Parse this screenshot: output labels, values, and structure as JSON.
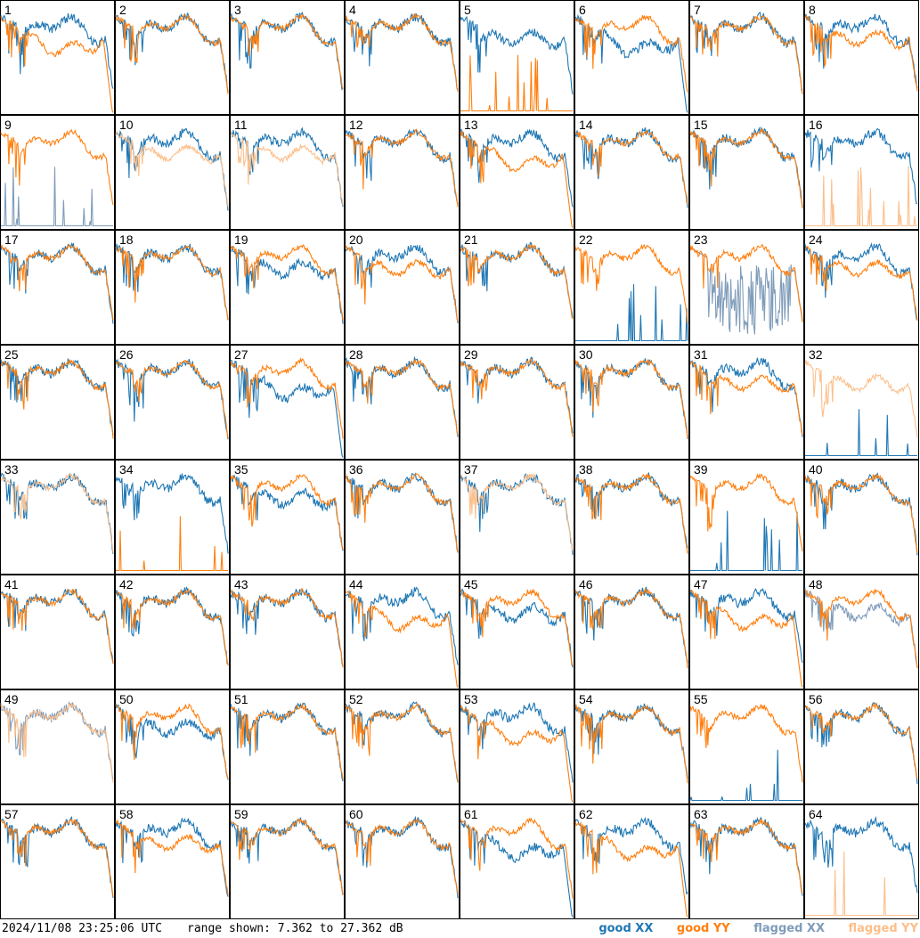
{
  "chart_data": {
    "type": "line",
    "layout": "8x8 small multiples",
    "timestamp": "2024/11/08 23:25:06 UTC",
    "range_text": "range shown: 7.362 to 27.362 dB",
    "ylim": [
      7.362,
      27.362
    ],
    "legend": [
      {
        "label": "good XX",
        "color": "#1f77b4"
      },
      {
        "label": "good YY",
        "color": "#ff7f0e"
      },
      {
        "label": "flagged XX",
        "color": "#7f9cba"
      },
      {
        "label": "flagged YY",
        "color": "#fcbf8b"
      }
    ],
    "colors": {
      "good_xx": "#1f77b4",
      "good_yy": "#ff7f0e",
      "flagged_xx": "#7f9cba",
      "flagged_yy": "#fcbf8b",
      "border": "#000000"
    },
    "panels": [
      {
        "id": "1",
        "xx": "good",
        "yy": "good",
        "xx_shape": "normal",
        "yy_shape": "drop"
      },
      {
        "id": "2",
        "xx": "good",
        "yy": "good",
        "xx_shape": "normal",
        "yy_shape": "normal"
      },
      {
        "id": "3",
        "xx": "good",
        "yy": "good",
        "xx_shape": "normal",
        "yy_shape": "normal"
      },
      {
        "id": "4",
        "xx": "good",
        "yy": "good",
        "xx_shape": "normal",
        "yy_shape": "normal"
      },
      {
        "id": "5",
        "xx": "good",
        "yy": "good",
        "xx_shape": "lowmid",
        "yy_shape": "spikes"
      },
      {
        "id": "6",
        "xx": "good",
        "yy": "good",
        "xx_shape": "drop",
        "yy_shape": "normal"
      },
      {
        "id": "7",
        "xx": "good",
        "yy": "good",
        "xx_shape": "normal",
        "yy_shape": "normal"
      },
      {
        "id": "8",
        "xx": "good",
        "yy": "good",
        "xx_shape": "normal",
        "yy_shape": "lowmid"
      },
      {
        "id": "9",
        "xx": "flagged",
        "yy": "good",
        "xx_shape": "spikes",
        "yy_shape": "normal"
      },
      {
        "id": "10",
        "xx": "good",
        "yy": "flagged",
        "xx_shape": "normal",
        "yy_shape": "lowmid"
      },
      {
        "id": "11",
        "xx": "good",
        "yy": "flagged",
        "xx_shape": "normal",
        "yy_shape": "lowmid"
      },
      {
        "id": "12",
        "xx": "good",
        "yy": "good",
        "xx_shape": "normal",
        "yy_shape": "normal"
      },
      {
        "id": "13",
        "xx": "good",
        "yy": "good",
        "xx_shape": "normal",
        "yy_shape": "drop"
      },
      {
        "id": "14",
        "xx": "good",
        "yy": "good",
        "xx_shape": "normal",
        "yy_shape": "normal"
      },
      {
        "id": "15",
        "xx": "good",
        "yy": "good",
        "xx_shape": "normal",
        "yy_shape": "normal"
      },
      {
        "id": "16",
        "xx": "good",
        "yy": "flagged",
        "xx_shape": "normal",
        "yy_shape": "spikes"
      },
      {
        "id": "17",
        "xx": "good",
        "yy": "good",
        "xx_shape": "normal",
        "yy_shape": "normal"
      },
      {
        "id": "18",
        "xx": "good",
        "yy": "good",
        "xx_shape": "normal",
        "yy_shape": "normal"
      },
      {
        "id": "19",
        "xx": "good",
        "yy": "good",
        "xx_shape": "lowmid",
        "yy_shape": "normal"
      },
      {
        "id": "20",
        "xx": "good",
        "yy": "good",
        "xx_shape": "normal",
        "yy_shape": "lowmid"
      },
      {
        "id": "21",
        "xx": "good",
        "yy": "good",
        "xx_shape": "normal",
        "yy_shape": "normal"
      },
      {
        "id": "22",
        "xx": "good",
        "yy": "good",
        "xx_shape": "spikes",
        "yy_shape": "normal"
      },
      {
        "id": "23",
        "xx": "flagged",
        "yy": "good",
        "xx_shape": "noisy",
        "yy_shape": "normal"
      },
      {
        "id": "24",
        "xx": "good",
        "yy": "good",
        "xx_shape": "normal",
        "yy_shape": "lowmid"
      },
      {
        "id": "25",
        "xx": "good",
        "yy": "good",
        "xx_shape": "normal",
        "yy_shape": "normal"
      },
      {
        "id": "26",
        "xx": "good",
        "yy": "good",
        "xx_shape": "normal",
        "yy_shape": "normal"
      },
      {
        "id": "27",
        "xx": "good",
        "yy": "good",
        "xx_shape": "drop",
        "yy_shape": "normal"
      },
      {
        "id": "28",
        "xx": "good",
        "yy": "good",
        "xx_shape": "normal",
        "yy_shape": "normal"
      },
      {
        "id": "29",
        "xx": "good",
        "yy": "good",
        "xx_shape": "normal",
        "yy_shape": "normal"
      },
      {
        "id": "30",
        "xx": "good",
        "yy": "good",
        "xx_shape": "normal",
        "yy_shape": "normal"
      },
      {
        "id": "31",
        "xx": "good",
        "yy": "good",
        "xx_shape": "normal",
        "yy_shape": "lowmid"
      },
      {
        "id": "32",
        "xx": "good",
        "yy": "flagged",
        "xx_shape": "spikes",
        "yy_shape": "lowmid"
      },
      {
        "id": "33",
        "xx": "good",
        "yy": "flagged",
        "xx_shape": "normal",
        "yy_shape": "normal"
      },
      {
        "id": "34",
        "xx": "good",
        "yy": "good",
        "xx_shape": "normal",
        "yy_shape": "spikes"
      },
      {
        "id": "35",
        "xx": "good",
        "yy": "good",
        "xx_shape": "lowmid",
        "yy_shape": "normal"
      },
      {
        "id": "36",
        "xx": "good",
        "yy": "good",
        "xx_shape": "normal",
        "yy_shape": "normal"
      },
      {
        "id": "37",
        "xx": "good",
        "yy": "flagged",
        "xx_shape": "normal",
        "yy_shape": "normal"
      },
      {
        "id": "38",
        "xx": "good",
        "yy": "good",
        "xx_shape": "normal",
        "yy_shape": "normal"
      },
      {
        "id": "39",
        "xx": "good",
        "yy": "good",
        "xx_shape": "spikes",
        "yy_shape": "normal"
      },
      {
        "id": "40",
        "xx": "good",
        "yy": "good",
        "xx_shape": "normal",
        "yy_shape": "normal"
      },
      {
        "id": "41",
        "xx": "good",
        "yy": "good",
        "xx_shape": "normal",
        "yy_shape": "normal"
      },
      {
        "id": "42",
        "xx": "good",
        "yy": "good",
        "xx_shape": "normal",
        "yy_shape": "normal"
      },
      {
        "id": "43",
        "xx": "good",
        "yy": "good",
        "xx_shape": "normal",
        "yy_shape": "normal"
      },
      {
        "id": "44",
        "xx": "good",
        "yy": "good",
        "xx_shape": "normal",
        "yy_shape": "drop"
      },
      {
        "id": "45",
        "xx": "good",
        "yy": "good",
        "xx_shape": "lowmid",
        "yy_shape": "normal"
      },
      {
        "id": "46",
        "xx": "good",
        "yy": "good",
        "xx_shape": "normal",
        "yy_shape": "normal"
      },
      {
        "id": "47",
        "xx": "good",
        "yy": "good",
        "xx_shape": "normal",
        "yy_shape": "drop"
      },
      {
        "id": "48",
        "xx": "flagged",
        "yy": "good",
        "xx_shape": "lowmid",
        "yy_shape": "normal"
      },
      {
        "id": "49",
        "xx": "flagged",
        "yy": "flagged",
        "xx_shape": "normal",
        "yy_shape": "normal"
      },
      {
        "id": "50",
        "xx": "good",
        "yy": "good",
        "xx_shape": "lowmid",
        "yy_shape": "normal"
      },
      {
        "id": "51",
        "xx": "good",
        "yy": "good",
        "xx_shape": "normal",
        "yy_shape": "normal"
      },
      {
        "id": "52",
        "xx": "good",
        "yy": "good",
        "xx_shape": "normal",
        "yy_shape": "normal"
      },
      {
        "id": "53",
        "xx": "good",
        "yy": "good",
        "xx_shape": "normal",
        "yy_shape": "drop"
      },
      {
        "id": "54",
        "xx": "good",
        "yy": "good",
        "xx_shape": "normal",
        "yy_shape": "normal"
      },
      {
        "id": "55",
        "xx": "good",
        "yy": "good",
        "xx_shape": "spikes",
        "yy_shape": "normal"
      },
      {
        "id": "56",
        "xx": "good",
        "yy": "good",
        "xx_shape": "normal",
        "yy_shape": "normal"
      },
      {
        "id": "57",
        "xx": "good",
        "yy": "good",
        "xx_shape": "normal",
        "yy_shape": "normal"
      },
      {
        "id": "58",
        "xx": "good",
        "yy": "good",
        "xx_shape": "normal",
        "yy_shape": "lowmid"
      },
      {
        "id": "59",
        "xx": "good",
        "yy": "good",
        "xx_shape": "normal",
        "yy_shape": "normal"
      },
      {
        "id": "60",
        "xx": "good",
        "yy": "good",
        "xx_shape": "normal",
        "yy_shape": "normal"
      },
      {
        "id": "61",
        "xx": "good",
        "yy": "good",
        "xx_shape": "drop",
        "yy_shape": "normal"
      },
      {
        "id": "62",
        "xx": "good",
        "yy": "good",
        "xx_shape": "normal",
        "yy_shape": "drop"
      },
      {
        "id": "63",
        "xx": "good",
        "yy": "good",
        "xx_shape": "normal",
        "yy_shape": "normal"
      },
      {
        "id": "64",
        "xx": "good",
        "yy": "flagged",
        "xx_shape": "normal",
        "yy_shape": "spikes"
      }
    ]
  }
}
